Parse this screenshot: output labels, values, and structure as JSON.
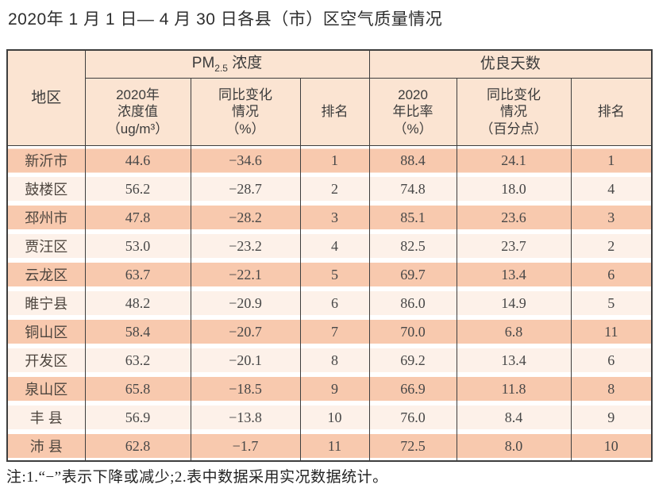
{
  "title": "2020年 1 月 1 日— 4 月 30 日各县（市）区空气质量情况",
  "colors": {
    "header_bg": "#fbe4d2",
    "row_salmon": "#f8c9ae",
    "row_light": "#fdf1e9",
    "border": "#3e3e3e"
  },
  "table": {
    "header": {
      "region": "地区",
      "pm25": {
        "pre": "PM",
        "sub": "2.5",
        "post": " 浓度"
      },
      "good_days": "优良天数",
      "pm_value": "2020年\n浓度值\n（ug/m³）",
      "pm_change": "同比变化\n情况\n（%）",
      "pm_rank": "排名",
      "good_ratio": "2020\n年比率\n（%）",
      "good_change": "同比变化\n情况\n（百分点）",
      "good_rank": "排名"
    },
    "rows": [
      {
        "region": "新沂市",
        "pm_value": "44.6",
        "pm_change": "−34.6",
        "pm_rank": "1",
        "good_ratio": "88.4",
        "good_change": "24.1",
        "good_rank": "1"
      },
      {
        "region": "鼓楼区",
        "pm_value": "56.2",
        "pm_change": "−28.7",
        "pm_rank": "2",
        "good_ratio": "74.8",
        "good_change": "18.0",
        "good_rank": "4"
      },
      {
        "region": "邳州市",
        "pm_value": "47.8",
        "pm_change": "−28.2",
        "pm_rank": "3",
        "good_ratio": "85.1",
        "good_change": "23.6",
        "good_rank": "3"
      },
      {
        "region": "贾汪区",
        "pm_value": "53.0",
        "pm_change": "−23.2",
        "pm_rank": "4",
        "good_ratio": "82.5",
        "good_change": "23.7",
        "good_rank": "2"
      },
      {
        "region": "云龙区",
        "pm_value": "63.7",
        "pm_change": "−22.1",
        "pm_rank": "5",
        "good_ratio": "69.7",
        "good_change": "13.4",
        "good_rank": "6"
      },
      {
        "region": "睢宁县",
        "pm_value": "48.2",
        "pm_change": "−20.9",
        "pm_rank": "6",
        "good_ratio": "86.0",
        "good_change": "14.9",
        "good_rank": "5"
      },
      {
        "region": "铜山区",
        "pm_value": "58.4",
        "pm_change": "−20.7",
        "pm_rank": "7",
        "good_ratio": "70.0",
        "good_change": "6.8",
        "good_rank": "11"
      },
      {
        "region": "开发区",
        "pm_value": "63.2",
        "pm_change": "−20.1",
        "pm_rank": "8",
        "good_ratio": "69.2",
        "good_change": "13.4",
        "good_rank": "6"
      },
      {
        "region": "泉山区",
        "pm_value": "65.8",
        "pm_change": "−18.5",
        "pm_rank": "9",
        "good_ratio": "66.9",
        "good_change": "11.8",
        "good_rank": "8"
      },
      {
        "region": "丰 县",
        "pm_value": "56.9",
        "pm_change": "−13.8",
        "pm_rank": "10",
        "good_ratio": "76.0",
        "good_change": "8.4",
        "good_rank": "9"
      },
      {
        "region": "沛 县",
        "pm_value": "62.8",
        "pm_change": "−1.7",
        "pm_rank": "11",
        "good_ratio": "72.5",
        "good_change": "8.0",
        "good_rank": "10"
      }
    ]
  },
  "footnote": "注:1.“−”表示下降或减少;2.表中数据采用实况数据统计。"
}
